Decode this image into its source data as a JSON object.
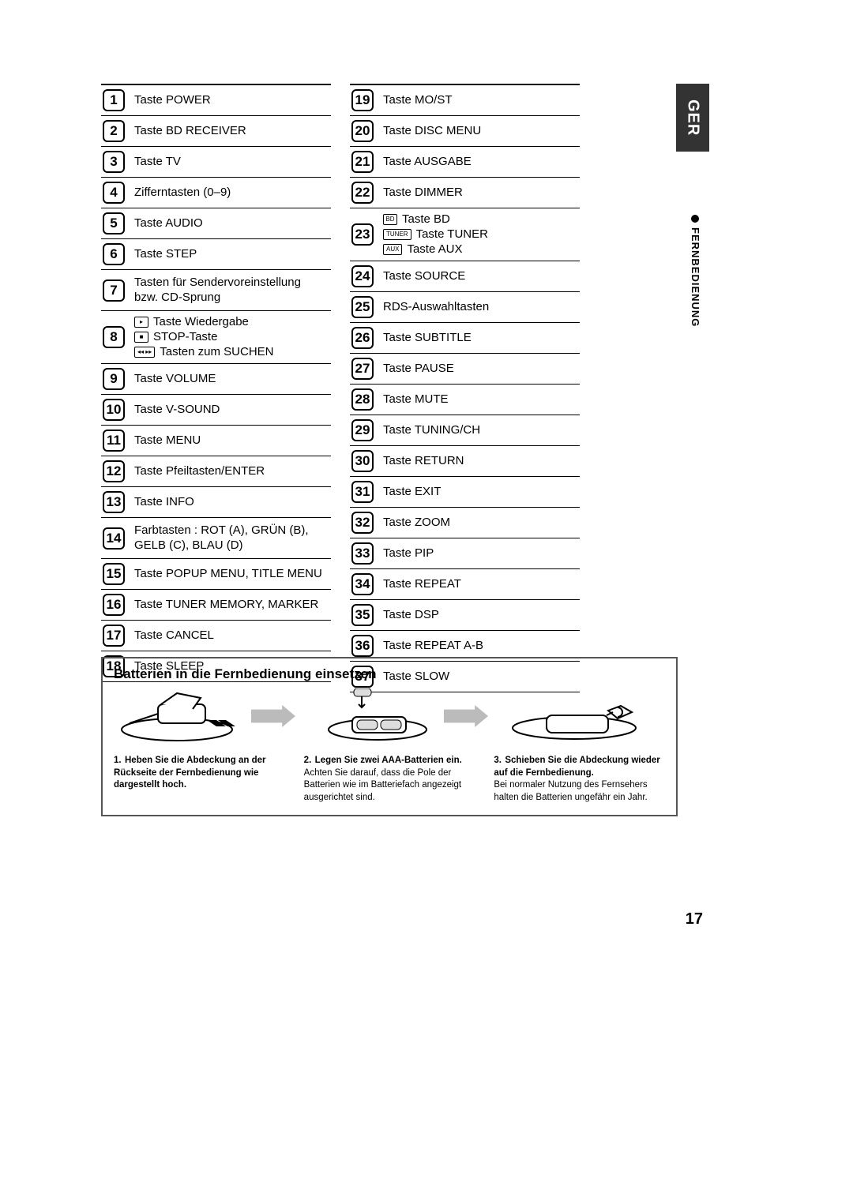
{
  "language_tab": "GER",
  "section_tab": "FERNBEDIENUNG",
  "page_number": "17",
  "left_column": [
    {
      "n": "1",
      "text": "Taste POWER"
    },
    {
      "n": "2",
      "text": "Taste BD RECEIVER"
    },
    {
      "n": "3",
      "text": "Taste TV"
    },
    {
      "n": "4",
      "text": "Zifferntasten (0–9)"
    },
    {
      "n": "5",
      "text": "Taste AUDIO"
    },
    {
      "n": "6",
      "text": "Taste STEP"
    },
    {
      "n": "7",
      "text": "Tasten für Sendervoreinstellung bzw. CD-Sprung",
      "tall": true
    },
    {
      "n": "8",
      "lines": [
        {
          "icon": "play-icon",
          "glyph": "▸",
          "text": "Taste Wiedergabe"
        },
        {
          "icon": "stop-icon",
          "glyph": "■",
          "text": "STOP-Taste"
        },
        {
          "icon": "search-icon",
          "glyph": "◂◂ ▸▸",
          "text": "Tasten zum SUCHEN"
        }
      ],
      "tall": true
    },
    {
      "n": "9",
      "text": "Taste VOLUME"
    },
    {
      "n": "10",
      "text": "Taste V-SOUND"
    },
    {
      "n": "11",
      "text": "Taste MENU"
    },
    {
      "n": "12",
      "text": "Taste Pfeiltasten/ENTER"
    },
    {
      "n": "13",
      "text": "Taste INFO"
    },
    {
      "n": "14",
      "text": "Farbtasten : ROT (A), GRÜN (B), GELB (C), BLAU (D)",
      "tall": true
    },
    {
      "n": "15",
      "text": "Taste POPUP MENU, TITLE MENU"
    },
    {
      "n": "16",
      "text": "Taste TUNER MEMORY, MARKER"
    },
    {
      "n": "17",
      "text": "Taste CANCEL"
    },
    {
      "n": "18",
      "text": "Taste SLEEP"
    }
  ],
  "right_column": [
    {
      "n": "19",
      "text": "Taste MO/ST"
    },
    {
      "n": "20",
      "text": "Taste DISC MENU"
    },
    {
      "n": "21",
      "text": "Taste AUSGABE"
    },
    {
      "n": "22",
      "text": "Taste DIMMER"
    },
    {
      "n": "23",
      "lines": [
        {
          "icon": "bd-icon",
          "glyph": "BD",
          "text": "Taste BD"
        },
        {
          "icon": "tuner-icon",
          "glyph": "TUNER",
          "text": "Taste TUNER"
        },
        {
          "icon": "aux-icon",
          "glyph": "AUX",
          "text": "Taste AUX"
        }
      ],
      "tall": true
    },
    {
      "n": "24",
      "text": "Taste SOURCE"
    },
    {
      "n": "25",
      "text": "RDS-Auswahltasten"
    },
    {
      "n": "26",
      "text": "Taste SUBTITLE"
    },
    {
      "n": "27",
      "text": "Taste PAUSE"
    },
    {
      "n": "28",
      "text": "Taste MUTE"
    },
    {
      "n": "29",
      "text": "Taste TUNING/CH"
    },
    {
      "n": "30",
      "text": "Taste RETURN"
    },
    {
      "n": "31",
      "text": "Taste EXIT"
    },
    {
      "n": "32",
      "text": "Taste ZOOM"
    },
    {
      "n": "33",
      "text": "Taste PIP"
    },
    {
      "n": "34",
      "text": "Taste REPEAT"
    },
    {
      "n": "35",
      "text": "Taste DSP"
    },
    {
      "n": "36",
      "text": "Taste REPEAT A-B"
    },
    {
      "n": "37",
      "text": "Taste SLOW"
    }
  ],
  "battery": {
    "title": "Batterien in die Fernbedienung einsetzen",
    "steps": [
      {
        "n": "1.",
        "bold": "Heben Sie die Abdeckung an der Rückseite der Fernbedienung wie dargestellt hoch.",
        "plain": ""
      },
      {
        "n": "2.",
        "bold": "Legen Sie zwei AAA-Batterien ein.",
        "plain": "Achten Sie darauf, dass die Pole der Batterien wie im Batteriefach angezeigt ausgerichtet sind."
      },
      {
        "n": "3.",
        "bold": "Schieben Sie die Abdeckung wieder auf die Fernbedienung.",
        "plain": "Bei normaler Nutzung des Fernsehers halten die Batterien ungefähr ein Jahr."
      }
    ]
  }
}
